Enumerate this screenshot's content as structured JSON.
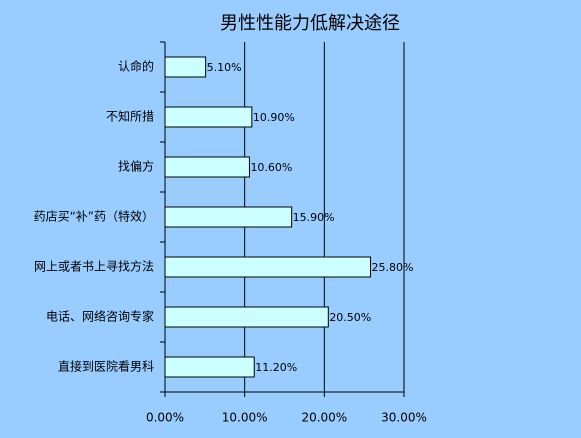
{
  "chart_data": {
    "type": "hbar",
    "title": "男性性能力低解决途径",
    "categories": [
      "认命的",
      "不知所措",
      "找偏方",
      "药店买“补”药（特效）",
      "网上或者书上寻找方法",
      "电话、网络咨询专家",
      "直接到医院看男科"
    ],
    "values": [
      5.1,
      10.9,
      10.6,
      15.9,
      25.8,
      20.5,
      11.2
    ],
    "value_labels": [
      "5.10%",
      "10.90%",
      "10.60%",
      "15.90%",
      "25.80%",
      "20.50%",
      "11.20%"
    ],
    "color": "#ccffff",
    "xlim": [
      0,
      30
    ],
    "xticks": [
      {
        "value": 0,
        "label": "0.00%"
      },
      {
        "value": 10,
        "label": "10.00%"
      },
      {
        "value": 20,
        "label": "20.00%"
      },
      {
        "value": 30,
        "label": "30.00%"
      }
    ],
    "grid": true
  }
}
